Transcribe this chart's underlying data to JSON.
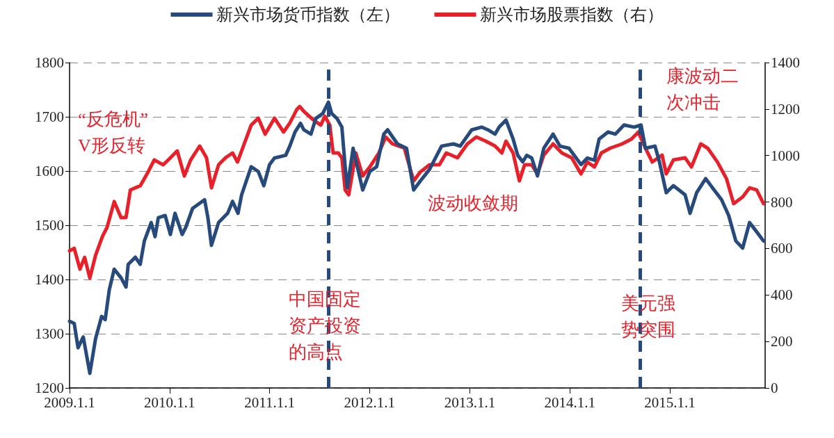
{
  "chart_data": {
    "type": "line",
    "xlim": [
      "2009-01-01",
      "2015-12-15"
    ],
    "xticks": [
      {
        "value": "2009-01-01",
        "label": "2009.1.1"
      },
      {
        "value": "2010-01-01",
        "label": "2010.1.1"
      },
      {
        "value": "2011-01-01",
        "label": "2011.1.1"
      },
      {
        "value": "2012-01-01",
        "label": "2012.1.1"
      },
      {
        "value": "2013-01-01",
        "label": "2013.1.1"
      },
      {
        "value": "2014-01-01",
        "label": "2014.1.1"
      },
      {
        "value": "2015-01-01",
        "label": "2015.1.1"
      }
    ],
    "ylim": [
      1200,
      1800
    ],
    "yticks": [
      1200,
      1300,
      1400,
      1500,
      1600,
      1700,
      1800
    ],
    "y2lim": [
      0,
      1400
    ],
    "y2ticks": [
      0,
      200,
      400,
      600,
      800,
      1000,
      1200,
      1400
    ],
    "grid": "y",
    "legend": "top",
    "marker": "none",
    "line_style": "solid",
    "series": [
      {
        "name": "新兴市场货币指数（左）",
        "color": "#274a7c",
        "x": [
          "2009-01-01",
          "2009-01-18",
          "2009-02-01",
          "2009-02-20",
          "2009-03-16",
          "2009-04-06",
          "2009-04-28",
          "2009-05-11",
          "2009-05-26",
          "2009-06-13",
          "2009-07-08",
          "2009-07-26",
          "2009-08-03",
          "2009-08-29",
          "2009-09-16",
          "2009-10-01",
          "2009-10-26",
          "2009-11-09",
          "2009-11-21",
          "2009-12-16",
          "2010-01-04",
          "2010-01-21",
          "2010-02-16",
          "2010-03-01",
          "2010-03-26",
          "2010-05-09",
          "2010-05-21",
          "2010-06-03",
          "2010-06-29",
          "2010-08-01",
          "2010-08-19",
          "2010-09-08",
          "2010-09-21",
          "2010-10-26",
          "2010-11-21",
          "2010-12-11",
          "2011-01-01",
          "2011-01-19",
          "2011-03-01",
          "2011-03-16",
          "2011-04-04",
          "2011-04-24",
          "2011-05-06",
          "2011-06-01",
          "2011-06-19",
          "2011-07-14",
          "2011-08-04",
          "2011-08-16",
          "2011-09-04",
          "2011-09-22",
          "2011-10-04",
          "2011-10-12",
          "2011-11-02",
          "2011-12-07",
          "2012-01-02",
          "2012-01-27",
          "2012-02-22",
          "2012-03-07",
          "2012-04-12",
          "2012-05-15",
          "2012-06-10",
          "2012-07-05",
          "2012-08-07",
          "2012-09-20",
          "2012-11-02",
          "2012-11-27",
          "2013-01-08",
          "2013-02-13",
          "2013-03-08",
          "2013-04-03",
          "2013-04-18",
          "2013-05-13",
          "2013-06-08",
          "2013-06-25",
          "2013-07-13",
          "2013-07-28",
          "2013-08-15",
          "2013-09-05",
          "2013-09-28",
          "2013-11-01",
          "2013-11-26",
          "2013-12-29",
          "2014-02-11",
          "2014-03-06",
          "2014-04-01",
          "2014-04-18",
          "2014-05-21",
          "2014-06-16",
          "2014-07-18",
          "2014-08-24",
          "2014-09-18",
          "2014-10-04",
          "2014-11-08",
          "2014-11-24",
          "2014-12-19",
          "2015-01-14",
          "2015-02-26",
          "2015-03-16",
          "2015-04-09",
          "2015-05-12",
          "2015-06-06",
          "2015-07-09",
          "2015-08-04",
          "2015-08-30",
          "2015-09-24",
          "2015-10-19",
          "2015-11-14",
          "2015-12-09"
        ],
        "values": [
          1323,
          1319,
          1274,
          1294,
          1227,
          1291,
          1332,
          1326,
          1381,
          1419,
          1403,
          1386,
          1428,
          1441,
          1428,
          1471,
          1505,
          1479,
          1514,
          1518,
          1483,
          1522,
          1483,
          1496,
          1531,
          1547,
          1514,
          1463,
          1505,
          1522,
          1544,
          1522,
          1556,
          1608,
          1599,
          1573,
          1612,
          1624,
          1629,
          1646,
          1672,
          1688,
          1676,
          1668,
          1697,
          1706,
          1727,
          1706,
          1697,
          1681,
          1608,
          1569,
          1642,
          1565,
          1599,
          1608,
          1668,
          1676,
          1650,
          1642,
          1565,
          1582,
          1603,
          1646,
          1650,
          1646,
          1676,
          1681,
          1676,
          1668,
          1681,
          1694,
          1659,
          1629,
          1617,
          1629,
          1624,
          1591,
          1642,
          1668,
          1646,
          1642,
          1612,
          1624,
          1620,
          1659,
          1672,
          1668,
          1685,
          1681,
          1685,
          1642,
          1646,
          1617,
          1560,
          1573,
          1556,
          1522,
          1560,
          1586,
          1569,
          1547,
          1518,
          1471,
          1458,
          1505,
          1488,
          1471
        ]
      },
      {
        "name": "新兴市场股票指数（右）",
        "color": "#e8202a",
        "axis": "y2",
        "x": [
          "2009-01-01",
          "2009-01-18",
          "2009-02-08",
          "2009-02-25",
          "2009-03-16",
          "2009-04-06",
          "2009-05-01",
          "2009-05-18",
          "2009-06-13",
          "2009-07-08",
          "2009-07-26",
          "2009-08-11",
          "2009-09-16",
          "2009-10-11",
          "2009-11-06",
          "2009-12-09",
          "2010-01-04",
          "2010-01-29",
          "2010-02-24",
          "2010-03-19",
          "2010-04-21",
          "2010-05-16",
          "2010-06-03",
          "2010-06-29",
          "2010-07-24",
          "2010-08-19",
          "2010-09-06",
          "2010-10-26",
          "2010-11-21",
          "2010-12-16",
          "2011-01-19",
          "2011-02-21",
          "2011-03-16",
          "2011-04-11",
          "2011-04-21",
          "2011-05-06",
          "2011-06-11",
          "2011-07-07",
          "2011-07-22",
          "2011-08-09",
          "2011-08-21",
          "2011-09-09",
          "2011-09-22",
          "2011-10-04",
          "2011-10-17",
          "2011-11-12",
          "2011-12-07",
          "2012-01-02",
          "2012-02-04",
          "2012-02-29",
          "2012-03-25",
          "2012-05-07",
          "2012-06-10",
          "2012-07-05",
          "2012-08-07",
          "2012-09-12",
          "2012-10-07",
          "2012-11-17",
          "2012-12-23",
          "2013-01-25",
          "2013-02-28",
          "2013-04-03",
          "2013-04-28",
          "2013-05-13",
          "2013-06-08",
          "2013-07-01",
          "2013-07-20",
          "2013-08-15",
          "2013-09-05",
          "2013-09-28",
          "2013-11-01",
          "2013-12-03",
          "2014-01-08",
          "2014-02-11",
          "2014-03-06",
          "2014-04-01",
          "2014-04-26",
          "2014-05-29",
          "2014-07-11",
          "2014-08-14",
          "2014-09-08",
          "2014-10-04",
          "2014-10-29",
          "2014-12-04",
          "2014-12-19",
          "2015-01-14",
          "2015-02-26",
          "2015-03-21",
          "2015-04-24",
          "2015-05-19",
          "2015-06-24",
          "2015-07-27",
          "2015-08-22",
          "2015-09-24",
          "2015-10-19",
          "2015-11-14",
          "2015-12-09"
        ],
        "values": [
          590,
          601,
          511,
          562,
          473,
          571,
          652,
          691,
          802,
          733,
          733,
          852,
          870,
          921,
          981,
          960,
          990,
          1020,
          912,
          981,
          1041,
          990,
          861,
          960,
          990,
          1011,
          972,
          1131,
          1161,
          1092,
          1161,
          1101,
          1140,
          1199,
          1211,
          1190,
          1152,
          1131,
          1169,
          1131,
          1011,
          1011,
          990,
          852,
          831,
          1011,
          912,
          951,
          1011,
          1080,
          1050,
          1032,
          891,
          930,
          960,
          960,
          1011,
          990,
          1050,
          1080,
          1062,
          1041,
          1011,
          1062,
          1011,
          891,
          960,
          960,
          921,
          1002,
          1050,
          1011,
          990,
          921,
          972,
          951,
          1011,
          1032,
          1050,
          1071,
          1101,
          1032,
          972,
          1002,
          921,
          981,
          990,
          951,
          1050,
          1032,
          972,
          900,
          793,
          822,
          861,
          852,
          793
        ]
      }
    ],
    "ref_lines": [
      {
        "axis": "x",
        "value": "2011-08-04",
        "color": "#274a7c",
        "line_style": "dashed"
      },
      {
        "axis": "x",
        "value": "2014-09-15",
        "color": "#274a7c",
        "line_style": "dashed"
      }
    ],
    "annotations": [
      "“反危机”V形反转",
      "中国固定资产投资的高点",
      "波动收敛期",
      "美元强势突围",
      "康波动二次冲击"
    ]
  }
}
